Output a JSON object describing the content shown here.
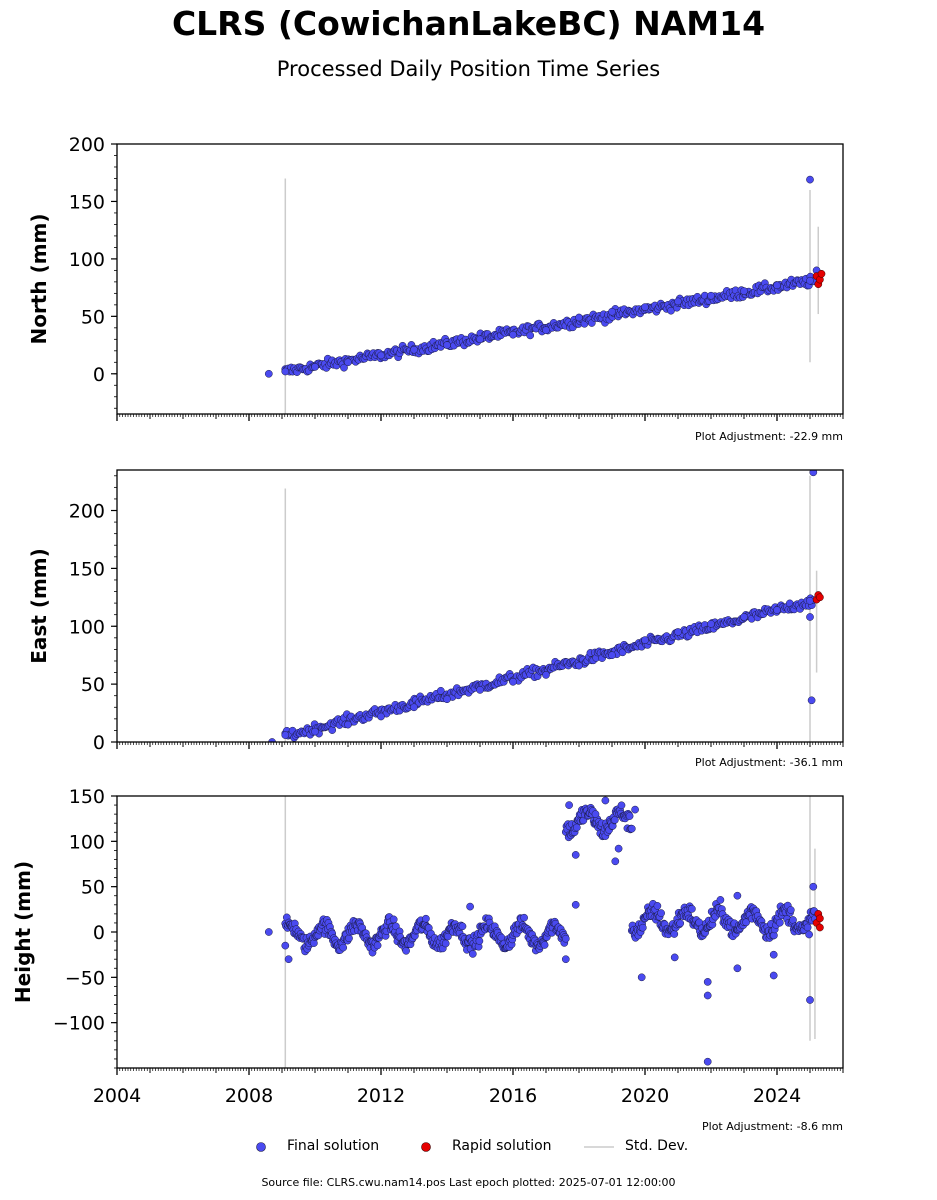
{
  "title": "CLRS (CowichanLakeBC) NAM14",
  "subtitle": "Processed Daily Position Time Series",
  "source": "Source file: CLRS.cwu.nam14.pos  Last epoch plotted: 2025-07-01 12:00:00",
  "legend": {
    "final": "Final solution",
    "rapid": "Rapid solution",
    "std": "Std. Dev."
  },
  "colors": {
    "final": "#4a4af0",
    "rapid": "#e50000",
    "std": "#cccccc",
    "edge": "#1a1a40"
  },
  "chart_data": [
    {
      "type": "scatter",
      "ylabel": "North (mm)",
      "adjustment": "Plot Adjustment: -22.9 mm",
      "xlim": [
        2004,
        2026
      ],
      "ylim": [
        -35,
        200
      ],
      "yticks": [
        0,
        50,
        100,
        150,
        200
      ],
      "series": [
        {
          "name": "Final solution",
          "points": [
            [
              2008.6,
              0
            ],
            [
              2009.1,
              2
            ],
            [
              2010,
              6
            ],
            [
              2011,
              10
            ],
            [
              2012,
              16
            ],
            [
              2013,
              21
            ],
            [
              2014,
              25
            ],
            [
              2015,
              30
            ],
            [
              2016,
              34
            ],
            [
              2017,
              38
            ],
            [
              2018,
              49
            ],
            [
              2019,
              54
            ],
            [
              2020,
              58
            ],
            [
              2021,
              63
            ],
            [
              2022,
              68
            ],
            [
              2023,
              72
            ],
            [
              2024,
              77
            ],
            [
              2025,
              81
            ],
            [
              2025.0,
              169
            ],
            [
              2025.2,
              90
            ]
          ]
        },
        {
          "name": "Rapid solution",
          "points": [
            [
              2025.2,
              85
            ],
            [
              2025.25,
              78
            ],
            [
              2025.3,
              82
            ],
            [
              2025.35,
              87
            ]
          ]
        }
      ],
      "trend": {
        "type": "linear",
        "from": [
          2009.1,
          2
        ],
        "to": [
          2025.1,
          81
        ],
        "scatter": 3
      },
      "std_dev": [
        [
          2009.1,
          -35,
          170
        ],
        [
          2025.0,
          10,
          160
        ],
        [
          2025.25,
          52,
          128
        ]
      ]
    },
    {
      "type": "scatter",
      "ylabel": "East (mm)",
      "adjustment": "Plot Adjustment: -36.1 mm",
      "xlim": [
        2004,
        2026
      ],
      "ylim": [
        0,
        235
      ],
      "yticks": [
        0,
        50,
        100,
        150,
        200
      ],
      "series": [
        {
          "name": "Final solution",
          "points": [
            [
              2008.7,
              0
            ],
            [
              2009.1,
              6
            ],
            [
              2010,
              9
            ],
            [
              2011,
              15
            ],
            [
              2012,
              22
            ],
            [
              2013,
              30
            ],
            [
              2014,
              37
            ],
            [
              2015,
              45
            ],
            [
              2016,
              52
            ],
            [
              2017,
              58
            ],
            [
              2018,
              66
            ],
            [
              2019,
              75
            ],
            [
              2020,
              88
            ],
            [
              2021,
              95
            ],
            [
              2022,
              102
            ],
            [
              2023,
              108
            ],
            [
              2024,
              114
            ],
            [
              2025,
              122
            ],
            [
              2025.0,
              108
            ],
            [
              2025.05,
              36
            ],
            [
              2025.1,
              233
            ]
          ]
        },
        {
          "name": "Rapid solution",
          "points": [
            [
              2025.2,
              123
            ],
            [
              2025.25,
              127
            ],
            [
              2025.3,
              125
            ]
          ]
        }
      ],
      "trend": {
        "type": "linear",
        "from": [
          2009.1,
          5
        ],
        "to": [
          2025.1,
          122
        ],
        "scatter": 3
      },
      "std_dev": [
        [
          2009.1,
          0,
          219
        ],
        [
          2025.0,
          0,
          230
        ],
        [
          2025.2,
          60,
          148
        ]
      ]
    },
    {
      "type": "scatter",
      "ylabel": "Height (mm)",
      "adjustment": "Plot Adjustment: -8.6 mm",
      "xlim": [
        2004,
        2026
      ],
      "ylim": [
        -150,
        150
      ],
      "yticks": [
        -100,
        -50,
        0,
        50,
        100,
        150
      ],
      "series": [
        {
          "name": "Final solution",
          "points": [
            [
              2008.6,
              0
            ],
            [
              2009.1,
              -15
            ],
            [
              2009.2,
              -30
            ],
            [
              2014.7,
              28
            ],
            [
              2017.6,
              -30
            ],
            [
              2017.9,
              30
            ],
            [
              2017.7,
              140
            ],
            [
              2017.9,
              85
            ],
            [
              2018.5,
              130
            ],
            [
              2018.8,
              145
            ],
            [
              2019.1,
              78
            ],
            [
              2019.2,
              92
            ],
            [
              2019.7,
              135
            ],
            [
              2019.9,
              -50
            ],
            [
              2020.9,
              -28
            ],
            [
              2021.9,
              -55
            ],
            [
              2021.9,
              -70
            ],
            [
              2021.9,
              -143
            ],
            [
              2022.8,
              40
            ],
            [
              2022.8,
              -40
            ],
            [
              2023.9,
              -25
            ],
            [
              2023.9,
              -48
            ],
            [
              2025.0,
              -75
            ],
            [
              2025.1,
              50
            ]
          ]
        },
        {
          "name": "Rapid solution",
          "points": [
            [
              2025.2,
              10
            ],
            [
              2025.25,
              20
            ],
            [
              2025.3,
              15
            ],
            [
              2025.3,
              5
            ]
          ]
        }
      ],
      "segments": [
        {
          "from": 2009.1,
          "to": 2017.6,
          "mean": -3,
          "amplitude": 11,
          "scatter": 6
        },
        {
          "from": 2017.6,
          "to": 2019.6,
          "mean": 122,
          "amplitude": 10,
          "scatter": 7
        },
        {
          "from": 2019.6,
          "to": 2025.15,
          "mean": 12,
          "amplitude": 11,
          "scatter": 7
        }
      ],
      "std_dev": [
        [
          2009.1,
          -150,
          150
        ],
        [
          2025.0,
          -120,
          150
        ],
        [
          2025.15,
          -118,
          92
        ]
      ]
    }
  ],
  "xaxis": {
    "ticks": [
      "2004",
      "2008",
      "2012",
      "2016",
      "2020",
      "2024"
    ]
  }
}
